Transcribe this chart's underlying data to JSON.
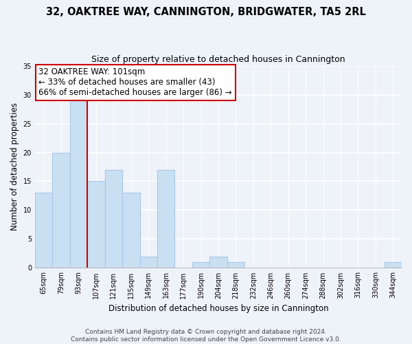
{
  "title": "32, OAKTREE WAY, CANNINGTON, BRIDGWATER, TA5 2RL",
  "subtitle": "Size of property relative to detached houses in Cannington",
  "xlabel": "Distribution of detached houses by size in Cannington",
  "ylabel": "Number of detached properties",
  "bin_labels": [
    "65sqm",
    "79sqm",
    "93sqm",
    "107sqm",
    "121sqm",
    "135sqm",
    "149sqm",
    "163sqm",
    "177sqm",
    "190sqm",
    "204sqm",
    "218sqm",
    "232sqm",
    "246sqm",
    "260sqm",
    "274sqm",
    "288sqm",
    "302sqm",
    "316sqm",
    "330sqm",
    "344sqm"
  ],
  "bar_heights": [
    13,
    20,
    29,
    15,
    17,
    13,
    2,
    17,
    0,
    1,
    2,
    1,
    0,
    0,
    0,
    0,
    0,
    0,
    0,
    0,
    1
  ],
  "bar_color": "#c9dff2",
  "bar_edge_color": "#a8c8e8",
  "vline_color": "#cc0000",
  "annotation_line1": "32 OAKTREE WAY: 101sqm",
  "annotation_line2": "← 33% of detached houses are smaller (43)",
  "annotation_line3": "66% of semi-detached houses are larger (86) →",
  "annotation_box_color": "#ffffff",
  "annotation_box_edge_color": "#cc0000",
  "ylim": [
    0,
    35
  ],
  "yticks": [
    0,
    5,
    10,
    15,
    20,
    25,
    30,
    35
  ],
  "footer_line1": "Contains HM Land Registry data © Crown copyright and database right 2024.",
  "footer_line2": "Contains public sector information licensed under the Open Government Licence v3.0.",
  "bg_color": "#eef2f9",
  "grid_color": "#ffffff",
  "title_fontsize": 10.5,
  "subtitle_fontsize": 9,
  "axis_label_fontsize": 8.5,
  "tick_fontsize": 7,
  "annotation_fontsize": 8.5,
  "footer_fontsize": 6.5,
  "vline_x": 2.57
}
